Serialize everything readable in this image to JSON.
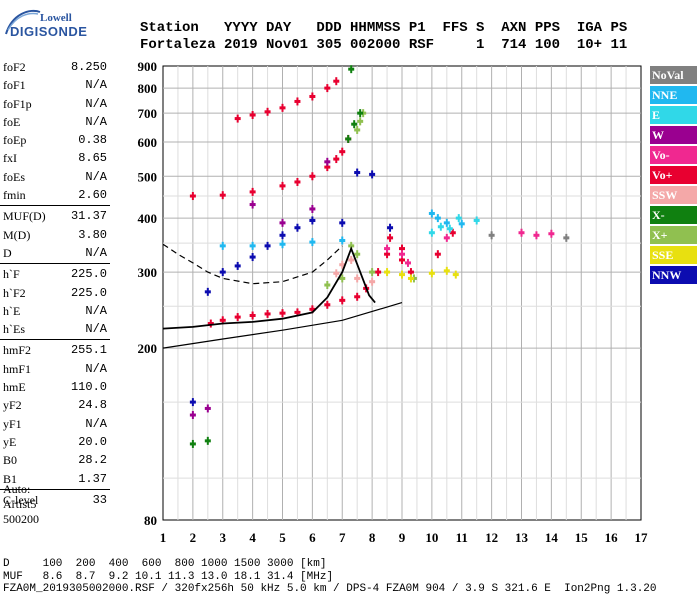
{
  "logo": {
    "line1": "Lowell",
    "line2": "DIGISONDE"
  },
  "header": {
    "line1": "Station   YYYY DAY   DDD HHMMSS P1  FFS S  AXN PPS  IGA PS",
    "line2": "Fortaleza 2019 Nov01 305 002000 RSF     1  714 100  10+ 11"
  },
  "params": [
    [
      {
        "label": "foF2",
        "value": "8.250"
      },
      {
        "label": "foF1",
        "value": "N/A"
      },
      {
        "label": "foF1p",
        "value": "N/A"
      },
      {
        "label": "foE",
        "value": "N/A"
      },
      {
        "label": "foEp",
        "value": "0.38"
      },
      {
        "label": "fxI",
        "value": "8.65"
      },
      {
        "label": "foEs",
        "value": "N/A"
      },
      {
        "label": "fmin",
        "value": "2.60"
      }
    ],
    [
      {
        "label": "MUF(D)",
        "value": "31.37"
      },
      {
        "label": "M(D)",
        "value": "3.80"
      },
      {
        "label": "D",
        "value": "N/A"
      }
    ],
    [
      {
        "label": "h`F",
        "value": "225.0"
      },
      {
        "label": "h`F2",
        "value": "225.0"
      },
      {
        "label": "h`E",
        "value": "N/A"
      },
      {
        "label": "h`Es",
        "value": "N/A"
      }
    ],
    [
      {
        "label": "hmF2",
        "value": "255.1"
      },
      {
        "label": "hmF1",
        "value": "N/A"
      },
      {
        "label": "hmE",
        "value": "110.0"
      },
      {
        "label": "yF2",
        "value": "24.8"
      },
      {
        "label": "yF1",
        "value": "N/A"
      },
      {
        "label": "yE",
        "value": "20.0"
      },
      {
        "label": "B0",
        "value": "28.2"
      },
      {
        "label": "B1",
        "value": "1.37"
      }
    ],
    [
      {
        "label": "C-level",
        "value": "33"
      }
    ]
  ],
  "auto": {
    "line1": "Auto:",
    "line2": "Artist5",
    "line3": "500200"
  },
  "legend": [
    {
      "label": "NoVal",
      "color": "#808080"
    },
    {
      "label": "NNE",
      "color": "#20b8f0"
    },
    {
      "label": "E",
      "color": "#30d8e8"
    },
    {
      "label": "W",
      "color": "#9a0090"
    },
    {
      "label": "Vo-",
      "color": "#f02890"
    },
    {
      "label": "Vo+",
      "color": "#e80030"
    },
    {
      "label": "SSW",
      "color": "#f4a8a8"
    },
    {
      "label": "X-",
      "color": "#108010"
    },
    {
      "label": "X+",
      "color": "#90c050"
    },
    {
      "label": "SSE",
      "color": "#e8e010"
    },
    {
      "label": "NNW",
      "color": "#0c0cb0"
    }
  ],
  "footer": {
    "line1": "D     100  200  400  600  800 1000 1500 3000 [km]",
    "line2": "MUF   8.6  8.7  9.2 10.1 11.3 13.0 18.1 31.4 [MHz]",
    "line3": "FZA0M_2019305002000.RSF / 320fx256h 50 kHz 5.0 km / DPS-4 FZA0M 904 / 3.9 S 321.6 E  Ion2Png 1.3.20"
  },
  "chart_data": {
    "type": "scatter",
    "title": "",
    "xlabel": "",
    "ylabel": "",
    "xlim": [
      1,
      17
    ],
    "ylim": [
      80,
      900
    ],
    "y_scale": "log",
    "grid": true,
    "x_ticks": [
      1,
      2,
      3,
      4,
      5,
      6,
      7,
      8,
      9,
      10,
      11,
      12,
      13,
      14,
      15,
      16,
      17
    ],
    "x_tick_labels": [
      "1",
      "2",
      "3",
      "4",
      "5",
      "6",
      "7",
      "8",
      "9",
      "10",
      "11",
      "12",
      "13",
      "14",
      "15",
      "16",
      "17"
    ],
    "y_ticks": [
      80,
      200,
      300,
      400,
      500,
      600,
      700,
      800,
      900
    ],
    "y_tick_labels": [
      "80",
      "200",
      "300",
      "400",
      "500",
      "600",
      "700",
      "800",
      "900"
    ],
    "legend_position": "right",
    "series": [
      {
        "name": "Vo+",
        "color": "#e80030",
        "points": [
          [
            2.6,
            228
          ],
          [
            3.0,
            232
          ],
          [
            3.5,
            236
          ],
          [
            4.0,
            238
          ],
          [
            4.5,
            240
          ],
          [
            5.0,
            241
          ],
          [
            5.5,
            242
          ],
          [
            6.0,
            246
          ],
          [
            6.5,
            252
          ],
          [
            7.0,
            258
          ],
          [
            7.5,
            263
          ],
          [
            7.8,
            275
          ],
          [
            8.2,
            300
          ],
          [
            8.5,
            330
          ],
          [
            9.0,
            320
          ],
          [
            9.3,
            300
          ],
          [
            10.2,
            330
          ],
          [
            2.0,
            450
          ],
          [
            3.0,
            452
          ],
          [
            4.0,
            460
          ],
          [
            5.0,
            475
          ],
          [
            5.5,
            485
          ],
          [
            6.0,
            500
          ],
          [
            6.5,
            525
          ],
          [
            6.8,
            548
          ],
          [
            7.0,
            570
          ],
          [
            7.2,
            610
          ],
          [
            3.5,
            680
          ],
          [
            4.0,
            693
          ],
          [
            4.5,
            705
          ],
          [
            5.0,
            720
          ],
          [
            5.5,
            745
          ],
          [
            6.0,
            765
          ],
          [
            6.5,
            800
          ],
          [
            6.8,
            830
          ],
          [
            8.6,
            360
          ],
          [
            9.0,
            340
          ],
          [
            10.7,
            370
          ]
        ]
      },
      {
        "name": "SSW",
        "color": "#f4a8a8",
        "points": [
          [
            6.8,
            298
          ],
          [
            7.0,
            312
          ],
          [
            7.3,
            320
          ],
          [
            7.5,
            290
          ],
          [
            8.0,
            285
          ]
        ]
      },
      {
        "name": "X+",
        "color": "#90c050",
        "points": [
          [
            6.5,
            280
          ],
          [
            7.0,
            290
          ],
          [
            7.3,
            345
          ],
          [
            7.5,
            330
          ],
          [
            7.5,
            640
          ],
          [
            7.6,
            670
          ],
          [
            7.7,
            700
          ],
          [
            8.0,
            300
          ],
          [
            9.4,
            290
          ]
        ]
      },
      {
        "name": "X-",
        "color": "#108010",
        "points": [
          [
            2.0,
            120
          ],
          [
            2.5,
            122
          ],
          [
            7.2,
            610
          ],
          [
            7.4,
            660
          ],
          [
            7.6,
            700
          ],
          [
            7.3,
            885
          ]
        ]
      },
      {
        "name": "NNE",
        "color": "#20b8f0",
        "points": [
          [
            3.0,
            345
          ],
          [
            4.0,
            345
          ],
          [
            5.0,
            348
          ],
          [
            6.0,
            352
          ],
          [
            7.0,
            355
          ],
          [
            10.2,
            400
          ],
          [
            10.5,
            390
          ],
          [
            11.0,
            388
          ],
          [
            10.0,
            410
          ]
        ]
      },
      {
        "name": "E",
        "color": "#30d8e8",
        "points": [
          [
            10.0,
            370
          ],
          [
            10.3,
            382
          ],
          [
            10.6,
            378
          ],
          [
            10.9,
            400
          ],
          [
            11.5,
            395
          ]
        ]
      },
      {
        "name": "NNW",
        "color": "#0c0cb0",
        "points": [
          [
            3.0,
            300
          ],
          [
            3.5,
            310
          ],
          [
            4.0,
            325
          ],
          [
            4.5,
            345
          ],
          [
            5.0,
            365
          ],
          [
            5.5,
            380
          ],
          [
            6.0,
            395
          ],
          [
            7.0,
            390
          ],
          [
            7.5,
            510
          ],
          [
            8.0,
            505
          ],
          [
            8.6,
            380
          ],
          [
            2.5,
            270
          ],
          [
            2.0,
            150
          ]
        ]
      },
      {
        "name": "W",
        "color": "#9a0090",
        "points": [
          [
            2.0,
            140
          ],
          [
            2.5,
            145
          ],
          [
            5.0,
            390
          ],
          [
            6.0,
            420
          ],
          [
            4.0,
            430
          ],
          [
            6.5,
            540
          ]
        ]
      },
      {
        "name": "Vo-",
        "color": "#f02890",
        "points": [
          [
            8.5,
            340
          ],
          [
            9.0,
            330
          ],
          [
            9.2,
            315
          ],
          [
            10.5,
            360
          ],
          [
            13.0,
            370
          ],
          [
            13.5,
            365
          ],
          [
            14.0,
            368
          ]
        ]
      },
      {
        "name": "SSE",
        "color": "#e8e010",
        "points": [
          [
            8.5,
            300
          ],
          [
            9.0,
            296
          ],
          [
            9.3,
            290
          ],
          [
            10.0,
            298
          ],
          [
            10.5,
            302
          ],
          [
            10.8,
            296
          ]
        ]
      },
      {
        "name": "NoVal",
        "color": "#808080",
        "points": [
          [
            12.0,
            365
          ],
          [
            14.5,
            360
          ]
        ]
      }
    ],
    "profile_curve": [
      [
        1.0,
        222
      ],
      [
        2.0,
        224
      ],
      [
        3.0,
        228
      ],
      [
        4.0,
        230
      ],
      [
        5.0,
        234
      ],
      [
        6.0,
        242
      ],
      [
        6.5,
        262
      ],
      [
        7.0,
        300
      ],
      [
        7.3,
        340
      ],
      [
        7.6,
        300
      ],
      [
        7.9,
        265
      ],
      [
        8.1,
        255
      ]
    ],
    "virtual_height_curve": [
      [
        1.0,
        348
      ],
      [
        1.5,
        330
      ],
      [
        2.0,
        315
      ],
      [
        2.5,
        300
      ],
      [
        3.0,
        290
      ],
      [
        4.0,
        282
      ],
      [
        5.0,
        285
      ],
      [
        6.0,
        300
      ],
      [
        6.5,
        320
      ],
      [
        7.0,
        345
      ]
    ],
    "bottomside_line": [
      [
        1.0,
        200
      ],
      [
        3.0,
        210
      ],
      [
        5.0,
        220
      ],
      [
        7.0,
        232
      ],
      [
        9.0,
        255
      ]
    ]
  }
}
